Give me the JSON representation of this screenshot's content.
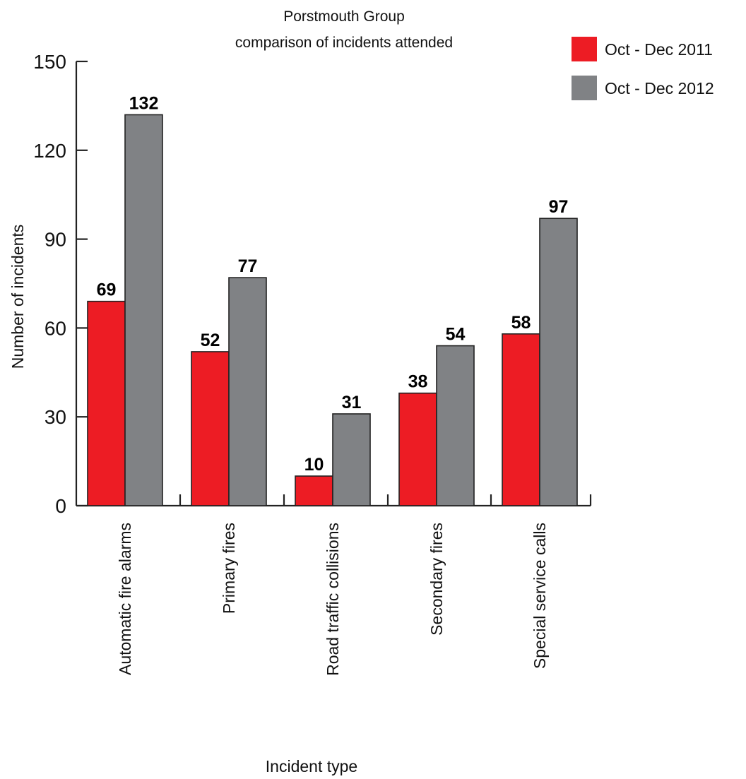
{
  "chart_data": {
    "type": "bar",
    "title": [
      "Porstmouth Group",
      "comparison of incidents attended"
    ],
    "xlabel": "Incident type",
    "ylabel": "Number of incidents",
    "ylim": [
      0,
      150
    ],
    "yticks": [
      0,
      30,
      60,
      90,
      120,
      150
    ],
    "grid": false,
    "legend_position": "top-right",
    "categories": [
      "Automatic fire alarms",
      "Primary fires",
      "Road traffic collisions",
      "Secondary fires",
      "Special service calls"
    ],
    "series": [
      {
        "name": "Oct - Dec 2011",
        "color": "#ed1c24",
        "values": [
          69,
          52,
          10,
          38,
          58
        ]
      },
      {
        "name": "Oct - Dec 2012",
        "color": "#808285",
        "values": [
          132,
          77,
          31,
          54,
          97
        ]
      }
    ]
  }
}
